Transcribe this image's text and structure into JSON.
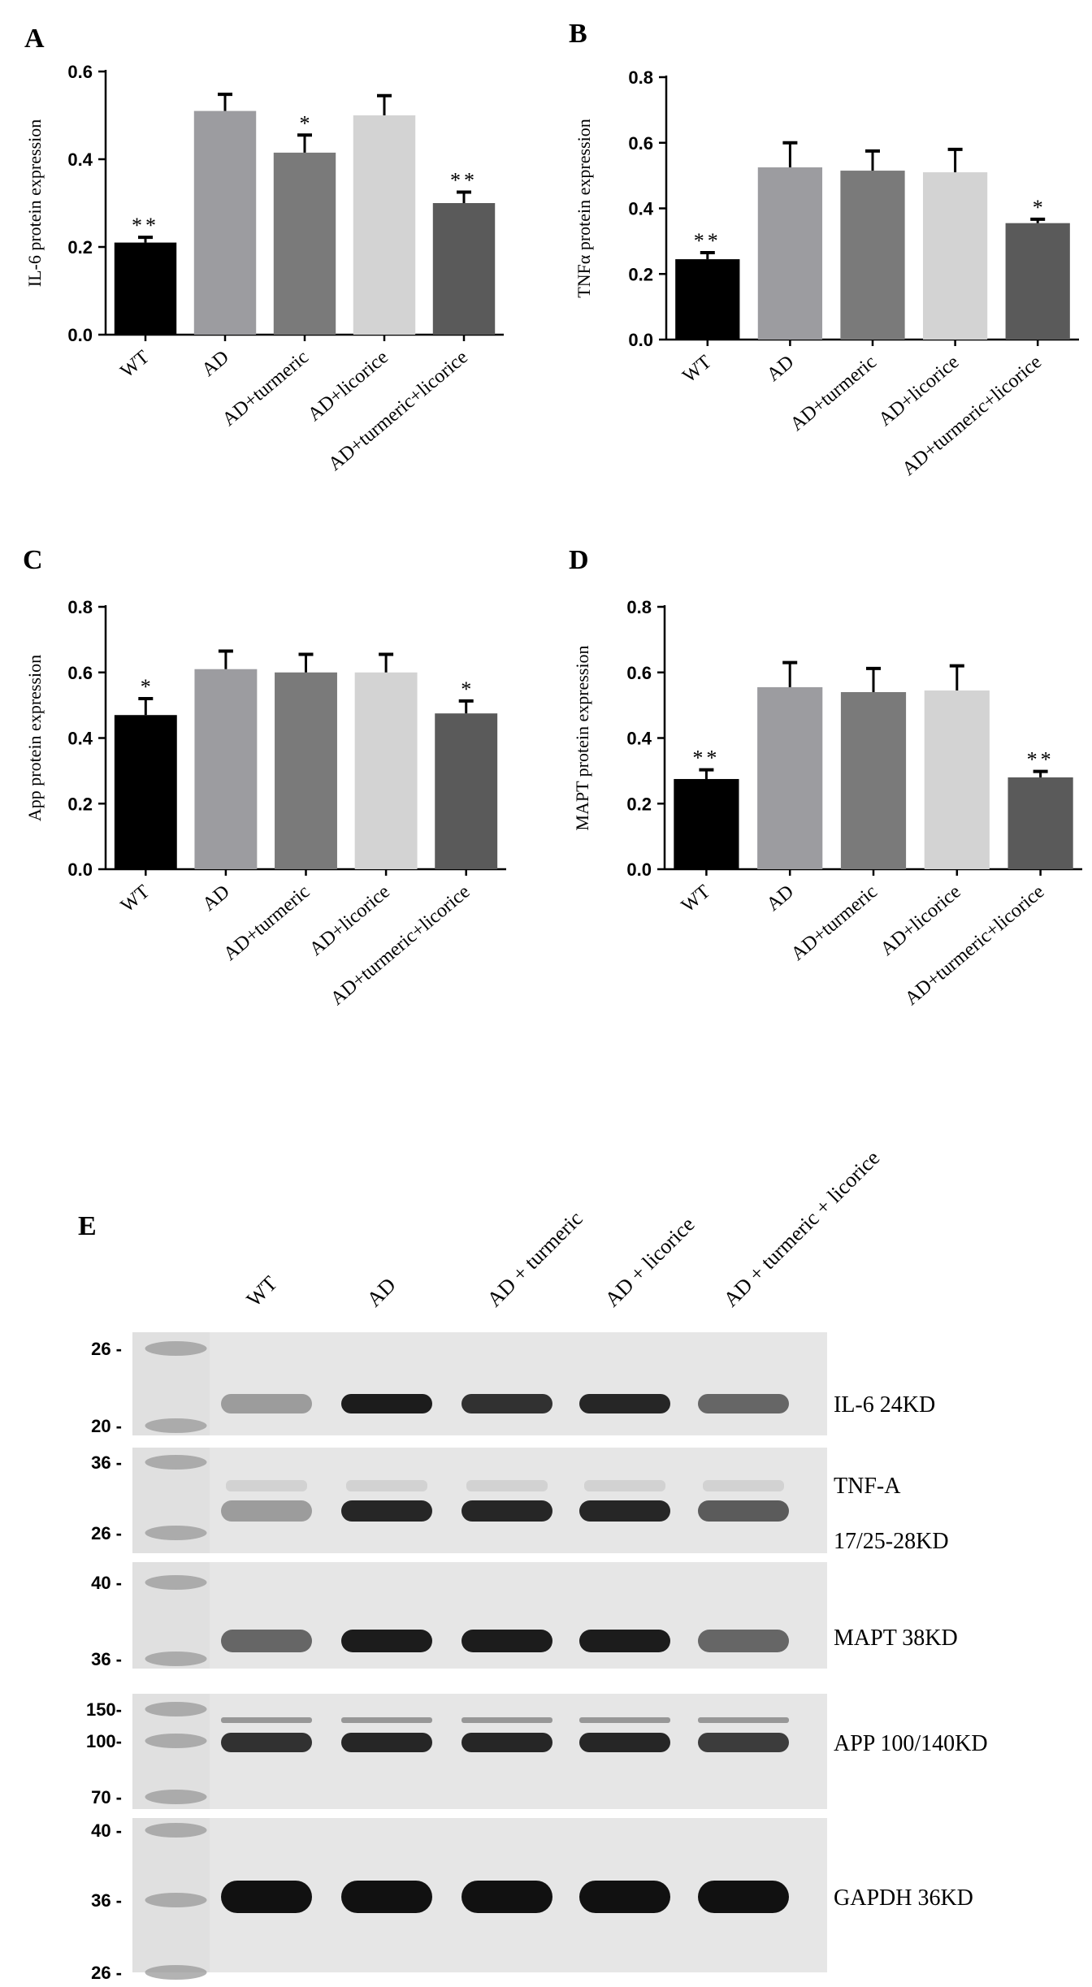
{
  "chart_data": [
    {
      "type": "bar",
      "panel": "A",
      "categories": [
        "WT",
        "AD",
        "AD+turmeric",
        "AD+licorice",
        "AD+turmeric+licorice"
      ],
      "values": [
        0.21,
        0.51,
        0.415,
        0.5,
        0.3
      ],
      "errors": [
        0.012,
        0.038,
        0.04,
        0.045,
        0.025
      ],
      "significance": [
        "**",
        "",
        "*",
        "",
        "**"
      ],
      "ylabel": "IL-6 protein expression",
      "ylim": [
        0,
        0.6
      ],
      "yticks": [
        "0.0",
        "0.2",
        "0.4",
        "0.6"
      ],
      "colors": [
        "#000000",
        "#9c9ca0",
        "#7a7a7a",
        "#d3d3d3",
        "#5a5a5a"
      ]
    },
    {
      "type": "bar",
      "panel": "B",
      "categories": [
        "WT",
        "AD",
        "AD+turmeric",
        "AD+licorice",
        "AD+turmeric+licorice"
      ],
      "values": [
        0.245,
        0.525,
        0.515,
        0.51,
        0.355
      ],
      "errors": [
        0.02,
        0.075,
        0.06,
        0.07,
        0.012
      ],
      "significance": [
        "**",
        "",
        "",
        "",
        "*"
      ],
      "ylabel": "TNFα protein expression",
      "ylim": [
        0,
        0.8
      ],
      "yticks": [
        "0.0",
        "0.2",
        "0.4",
        "0.6",
        "0.8"
      ],
      "colors": [
        "#000000",
        "#9c9ca0",
        "#7a7a7a",
        "#d3d3d3",
        "#5a5a5a"
      ]
    },
    {
      "type": "bar",
      "panel": "C",
      "categories": [
        "WT",
        "AD",
        "AD+turmeric",
        "AD+licorice",
        "AD+turmeric+licorice"
      ],
      "values": [
        0.47,
        0.61,
        0.6,
        0.6,
        0.475
      ],
      "errors": [
        0.05,
        0.055,
        0.055,
        0.055,
        0.038
      ],
      "significance": [
        "*",
        "",
        "",
        "",
        "*"
      ],
      "ylabel": "App protein expression",
      "ylim": [
        0,
        0.8
      ],
      "yticks": [
        "0.0",
        "0.2",
        "0.4",
        "0.6",
        "0.8"
      ],
      "colors": [
        "#000000",
        "#9c9ca0",
        "#7a7a7a",
        "#d3d3d3",
        "#5a5a5a"
      ]
    },
    {
      "type": "bar",
      "panel": "D",
      "categories": [
        "WT",
        "AD",
        "AD+turmeric",
        "AD+licorice",
        "AD+turmeric+licorice"
      ],
      "values": [
        0.275,
        0.555,
        0.54,
        0.545,
        0.28
      ],
      "errors": [
        0.028,
        0.075,
        0.072,
        0.075,
        0.018
      ],
      "significance": [
        "**",
        "",
        "",
        "",
        "**"
      ],
      "ylabel": "MAPT protein expression",
      "ylim": [
        0,
        0.8
      ],
      "yticks": [
        "0.0",
        "0.2",
        "0.4",
        "0.6",
        "0.8"
      ],
      "colors": [
        "#000000",
        "#9c9ca0",
        "#7a7a7a",
        "#d3d3d3",
        "#5a5a5a"
      ]
    }
  ],
  "blot": {
    "panel": "E",
    "lanes": [
      "WT",
      "AD",
      "AD + turmeric",
      "AD + licorice",
      "AD + turmeric + licorice"
    ],
    "strips": [
      {
        "id": "il6",
        "label_lines": [
          "IL-6  24KD"
        ],
        "markers": [
          "26 -",
          "20 -"
        ],
        "intensity": [
          0.35,
          0.95,
          0.85,
          0.9,
          0.6
        ]
      },
      {
        "id": "tnfa",
        "label_lines": [
          "TNF-A",
          "17/25-28KD"
        ],
        "markers": [
          "36 -",
          "26 -"
        ],
        "intensity": [
          0.35,
          0.9,
          0.9,
          0.9,
          0.65
        ]
      },
      {
        "id": "mapt",
        "label_lines": [
          "MAPT 38KD"
        ],
        "markers": [
          "40 -",
          "36 -"
        ],
        "intensity": [
          0.6,
          0.95,
          0.95,
          0.95,
          0.6
        ]
      },
      {
        "id": "app",
        "label_lines": [
          "APP  100/140KD"
        ],
        "markers": [
          "150-",
          "100-",
          "70 -"
        ],
        "intensity": [
          0.85,
          0.9,
          0.9,
          0.9,
          0.8
        ]
      },
      {
        "id": "gapdh",
        "label_lines": [
          "GAPDH  36KD"
        ],
        "markers": [
          "40 -",
          "36 -",
          "26 -"
        ],
        "intensity": [
          1,
          1,
          1,
          1,
          1
        ]
      }
    ]
  }
}
